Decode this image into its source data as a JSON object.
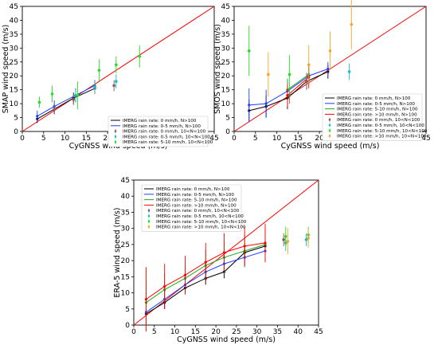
{
  "colors": {
    "black": "#000000",
    "blue": "#1f3fff",
    "green": "#1fa81f",
    "red": "#ff0000",
    "black_pt": "#8a5a5a",
    "blue_pt": "#17bebe",
    "green_pt": "#22dd22",
    "red_pt": "#f5a623",
    "diag": "#ff0000"
  },
  "chart_data": [
    {
      "type": "scatter",
      "xlabel": "CyGNSS wind speed (m/s)",
      "ylabel": "SMAP wind speed (m/s)",
      "xlim": [
        0,
        45
      ],
      "ylim": [
        0,
        45
      ],
      "xticks": [
        "0",
        "5",
        "10",
        "15",
        "20",
        "25",
        "30",
        "35",
        "40",
        "45"
      ],
      "yticks": [
        "0",
        "5",
        "10",
        "15",
        "20",
        "25",
        "30",
        "35",
        "40",
        "45"
      ],
      "legend_position": "lower-right",
      "legend_labels": [
        "IMERG rain rate: 0 mm/h, N>100",
        "IMERG rain rate: 0-5 mm/h, N>100",
        "IMERG rain rate: 0 mm/h, 10<N<100",
        "IMERG rain rate: 0-5 mm/h, 10<N<100",
        "IMERG rain rate: 5-10 mm/h, 10<N<100"
      ],
      "legend_styles": [
        "line:black",
        "line:blue",
        "pt:black_pt",
        "pt:blue_pt",
        "pt:green_pt"
      ],
      "lines": [
        {
          "name": "IMERG rain rate: 0 mm/h, N>100",
          "color": "black",
          "x": [
            3.5,
            7.5,
            12,
            17
          ],
          "y": [
            4.5,
            8,
            12,
            15.5
          ],
          "err": [
            1.5,
            1.8,
            2,
            1.5
          ]
        },
        {
          "name": "IMERG rain rate: 0-5 mm/h, N>100",
          "color": "blue",
          "x": [
            3.5,
            7.5,
            12.5,
            17
          ],
          "y": [
            5.5,
            9,
            13,
            16.5
          ],
          "err": [
            2,
            2.2,
            2.5,
            2
          ]
        }
      ],
      "points": [
        {
          "name": "IMERG rain rate: 0 mm/h, 10<N<100",
          "color": "black_pt",
          "x": [
            7.5,
            12,
            17,
            21.5
          ],
          "y": [
            8,
            11.5,
            15.5,
            16.5
          ],
          "err": [
            1.5,
            2,
            2,
            2
          ]
        },
        {
          "name": "IMERG rain rate: 0-5 mm/h, 10<N<100",
          "color": "blue_pt",
          "x": [
            12.5,
            17,
            22
          ],
          "y": [
            13,
            16,
            18
          ],
          "err": [
            2,
            2,
            2.5
          ]
        },
        {
          "name": "IMERG rain rate: 5-10 mm/h, 10<N<100",
          "color": "green_pt",
          "x": [
            4,
            7,
            13,
            18,
            22,
            27.5
          ],
          "y": [
            10.5,
            13.5,
            13,
            22,
            24,
            27
          ],
          "err": [
            2,
            3,
            5,
            4,
            3,
            4
          ]
        }
      ]
    },
    {
      "type": "scatter",
      "xlabel": "CyGNSS wind speed (m/s)",
      "ylabel": "SMOS wind speed (m/s)",
      "xlim": [
        0,
        45
      ],
      "ylim": [
        0,
        45
      ],
      "xticks": [
        "0",
        "5",
        "10",
        "15",
        "20",
        "25",
        "30",
        "35",
        "40",
        "45"
      ],
      "yticks": [
        "0",
        "5",
        "10",
        "15",
        "20",
        "25",
        "30",
        "35",
        "40",
        "45"
      ],
      "legend_position": "lower-right",
      "legend_labels": [
        "IMERG rain rate: 0 mm/h, N>100",
        "IMERG rain rate: 0-5 mm/h, N>100",
        "IMERG rain rate: 5-10 mm/h, N>100",
        "IMERG rain rate: >10 mm/h, N>100",
        "IMERG rain rate: 0 mm/h, 10<N<100",
        "IMERG rain rate: 0-5 mm/h, 10<N<100",
        "IMERG rain rate: 5-10 mm/h, 10<N<100",
        "IMERG rain rate: >10 mm/h, 10<N<100"
      ],
      "legend_styles": [
        "line:black",
        "line:blue",
        "line:green",
        "line:red",
        "pt:black_pt",
        "pt:blue_pt",
        "pt:green_pt",
        "pt:red_pt"
      ],
      "lines": [
        {
          "name": "IMERG rain rate: 0 mm/h, N>100",
          "color": "black",
          "x": [
            3.5,
            7.5,
            12.5,
            17,
            22
          ],
          "y": [
            7.5,
            9,
            12,
            18,
            21.5
          ],
          "err": [
            4,
            4,
            4,
            3,
            2.5
          ]
        },
        {
          "name": "IMERG rain rate: 0-5 mm/h, N>100",
          "color": "blue",
          "x": [
            3.5,
            7.5,
            12.5,
            17.5,
            22
          ],
          "y": [
            9.5,
            10,
            14.5,
            20,
            22.5
          ],
          "err": [
            6,
            5,
            4,
            3,
            2.5
          ]
        },
        {
          "name": "IMERG rain rate: 5-10 mm/h, N>100",
          "color": "green",
          "x": [
            12.5,
            17.5
          ],
          "y": [
            15,
            20.5
          ],
          "err": [
            4,
            4
          ]
        },
        {
          "name": "IMERG rain rate: >10 mm/h, N>100",
          "color": "red",
          "x": [
            12.5,
            17.5
          ],
          "y": [
            13,
            19.5
          ],
          "err": [
            4,
            4
          ]
        }
      ],
      "points": [
        {
          "name": "IMERG rain rate: 0 mm/h, 10<N<100",
          "color": "black_pt",
          "x": [
            13,
            17
          ],
          "y": [
            13,
            18
          ],
          "err": [
            3,
            3
          ]
        },
        {
          "name": "IMERG rain rate: 0-5 mm/h, 10<N<100",
          "color": "blue_pt",
          "x": [
            27
          ],
          "y": [
            21.5
          ],
          "err": [
            3
          ]
        },
        {
          "name": "IMERG rain rate: 5-10 mm/h, 10<N<100",
          "color": "green_pt",
          "x": [
            3.5,
            13
          ],
          "y": [
            29,
            20.5
          ],
          "err": [
            9,
            7
          ]
        },
        {
          "name": "IMERG rain rate: >10 mm/h, 10<N<100",
          "color": "red_pt",
          "x": [
            8,
            17.5,
            22.5,
            27.5
          ],
          "y": [
            20.5,
            24,
            29,
            38.5
          ],
          "err": [
            8,
            7,
            7,
            9
          ]
        }
      ]
    },
    {
      "type": "scatter",
      "xlabel": "CyGNSS wind speed (m/s)",
      "ylabel": "ERA-5 wind speed (m/s)",
      "xlim": [
        0,
        45
      ],
      "ylim": [
        0,
        45
      ],
      "xticks": [
        "0",
        "5",
        "10",
        "15",
        "20",
        "25",
        "30",
        "35",
        "40",
        "45"
      ],
      "yticks": [
        "0",
        "5",
        "10",
        "15",
        "20",
        "25",
        "30",
        "35",
        "40",
        "45"
      ],
      "legend_position": "upper-left",
      "legend_labels": [
        "IMERG rain rate: 0 mm/h, N>100",
        "IMERG rain rate: 0-5 mm/h, N>100",
        "IMERG rain rate: 5-10 mm/h, N>100",
        "IMERG rain rate: >10 mm/h, N>100",
        "IMERG rain rate: 0 mm/h, 10<N<100",
        "IMERG rain rate: 0-5 mm/h, 10<N<100",
        "IMERG rain rate: 5-10 mm/h, 10<N<100",
        "IMERG rain rate: >10 mm/h, 10<N<100"
      ],
      "legend_styles": [
        "line:black",
        "line:blue",
        "line:green",
        "line:red",
        "pt:black_pt",
        "pt:blue_pt",
        "pt:green_pt",
        "pt:red_pt"
      ],
      "lines": [
        {
          "name": "IMERG rain rate: 0 mm/h, N>100",
          "color": "black",
          "x": [
            3,
            7.5,
            12.5,
            17.5,
            22,
            27,
            32
          ],
          "y": [
            3.5,
            7,
            11.5,
            14.5,
            16.5,
            22.5,
            24.5
          ],
          "err": [
            2,
            2,
            2,
            2,
            2,
            2,
            2
          ]
        },
        {
          "name": "IMERG rain rate: 0-5 mm/h, N>100",
          "color": "blue",
          "x": [
            3,
            7.5,
            12.5,
            17.5,
            22,
            27,
            32
          ],
          "y": [
            4,
            8,
            12.5,
            16.5,
            19,
            21,
            23
          ],
          "err": [
            3,
            3,
            3,
            3,
            3,
            3,
            3
          ]
        },
        {
          "name": "IMERG rain rate: 5-10 mm/h, N>100",
          "color": "green",
          "x": [
            3,
            7.5,
            12.5,
            17.5,
            22,
            27,
            32
          ],
          "y": [
            7,
            11,
            14.5,
            18.5,
            21,
            23,
            25
          ],
          "err": [
            7,
            5,
            5,
            5,
            5,
            5,
            5
          ]
        },
        {
          "name": "IMERG rain rate: >10 mm/h, N>100",
          "color": "red",
          "x": [
            3,
            7.5,
            12.5,
            17.5,
            22,
            27,
            32
          ],
          "y": [
            8,
            12,
            15.5,
            19.5,
            22.5,
            24.5,
            25.5
          ],
          "err": [
            10,
            7,
            6,
            6,
            6,
            6,
            6
          ]
        }
      ],
      "points": [
        {
          "name": "IMERG rain rate: 0 mm/h, 10<N<100",
          "color": "black_pt",
          "x": [
            36.5
          ],
          "y": [
            26.5
          ],
          "err": [
            2
          ]
        },
        {
          "name": "IMERG rain rate: 0-5 mm/h, 10<N<100",
          "color": "blue_pt",
          "x": [
            37,
            42
          ],
          "y": [
            25.5,
            26.5
          ],
          "err": [
            2.5,
            2
          ]
        },
        {
          "name": "IMERG rain rate: 5-10 mm/h, 10<N<100",
          "color": "green_pt",
          "x": [
            37,
            42.5
          ],
          "y": [
            27.5,
            28
          ],
          "err": [
            3,
            2.5
          ]
        },
        {
          "name": "IMERG rain rate: >10 mm/h, 10<N<100",
          "color": "red_pt",
          "x": [
            37.5,
            42.5
          ],
          "y": [
            26,
            27
          ],
          "err": [
            4,
            3
          ]
        }
      ]
    }
  ]
}
